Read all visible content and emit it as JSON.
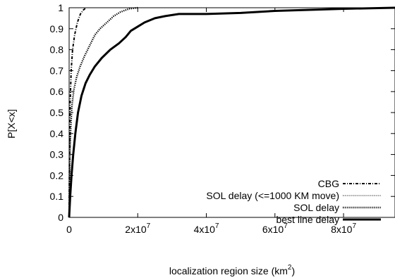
{
  "chart_data": {
    "type": "line",
    "title": "",
    "xlabel": "localization region size (km",
    "xlabel_superscript": "2",
    "xlabel_suffix": ")",
    "ylabel": "P[X<x]",
    "xlim": [
      0,
      95000000
    ],
    "ylim": [
      0,
      1
    ],
    "grid": false,
    "legend_position": "bottom-right",
    "x_ticks": [
      {
        "value": 0,
        "base": "0",
        "exp": ""
      },
      {
        "value": 20000000,
        "base": "2x10",
        "exp": "7"
      },
      {
        "value": 40000000,
        "base": "4x10",
        "exp": "7"
      },
      {
        "value": 60000000,
        "base": "6x10",
        "exp": "7"
      },
      {
        "value": 80000000,
        "base": "8x10",
        "exp": "7"
      }
    ],
    "y_ticks": [
      {
        "value": 0,
        "label": "0"
      },
      {
        "value": 0.1,
        "label": "0.1"
      },
      {
        "value": 0.2,
        "label": "0.2"
      },
      {
        "value": 0.3,
        "label": "0.3"
      },
      {
        "value": 0.4,
        "label": "0.4"
      },
      {
        "value": 0.5,
        "label": "0.5"
      },
      {
        "value": 0.6,
        "label": "0.6"
      },
      {
        "value": 0.7,
        "label": "0.7"
      },
      {
        "value": 0.8,
        "label": "0.8"
      },
      {
        "value": 0.9,
        "label": "0.9"
      },
      {
        "value": 1,
        "label": "1"
      }
    ],
    "series": [
      {
        "name": "CBG",
        "style": "dash-dot",
        "width": 2,
        "points": [
          [
            0,
            0
          ],
          [
            100000,
            0.3
          ],
          [
            300000,
            0.55
          ],
          [
            600000,
            0.7
          ],
          [
            1000000,
            0.8
          ],
          [
            1600000,
            0.87
          ],
          [
            2400000,
            0.93
          ],
          [
            3300000,
            0.97
          ],
          [
            4200000,
            0.99
          ],
          [
            5000000,
            1.0
          ]
        ]
      },
      {
        "name": "SOL delay (<=1000 KM move)",
        "style": "dotted",
        "width": 1,
        "points": [
          [
            0,
            0
          ],
          [
            150000,
            0.2
          ],
          [
            400000,
            0.4
          ],
          [
            800000,
            0.53
          ],
          [
            1400000,
            0.61
          ],
          [
            2200000,
            0.67
          ],
          [
            3200000,
            0.72
          ],
          [
            4500000,
            0.77
          ],
          [
            6000000,
            0.82
          ],
          [
            7500000,
            0.87
          ],
          [
            9000000,
            0.9
          ],
          [
            11000000,
            0.93
          ],
          [
            13000000,
            0.96
          ],
          [
            15000000,
            0.98
          ],
          [
            17500000,
            0.995
          ],
          [
            20000000,
            1.0
          ],
          [
            26000000,
            1.0
          ]
        ]
      },
      {
        "name": "SOL delay",
        "style": "dotted",
        "width": 2.4,
        "points": [
          [
            0,
            0
          ],
          [
            150000,
            0.2
          ],
          [
            400000,
            0.4
          ],
          [
            800000,
            0.53
          ],
          [
            1400000,
            0.61
          ],
          [
            2200000,
            0.67
          ],
          [
            3200000,
            0.72
          ],
          [
            4500000,
            0.77
          ],
          [
            6000000,
            0.82
          ],
          [
            7500000,
            0.87
          ],
          [
            9000000,
            0.9
          ],
          [
            11000000,
            0.93
          ],
          [
            13000000,
            0.96
          ],
          [
            15000000,
            0.98
          ],
          [
            17500000,
            0.995
          ],
          [
            20000000,
            1.0
          ]
        ]
      },
      {
        "name": "best line delay",
        "style": "solid",
        "width": 3,
        "points": [
          [
            0,
            0
          ],
          [
            300000,
            0.1
          ],
          [
            700000,
            0.2
          ],
          [
            1200000,
            0.3
          ],
          [
            1800000,
            0.4
          ],
          [
            2600000,
            0.5
          ],
          [
            3600000,
            0.58
          ],
          [
            4800000,
            0.64
          ],
          [
            6000000,
            0.68
          ],
          [
            7500000,
            0.72
          ],
          [
            9500000,
            0.76
          ],
          [
            12000000,
            0.8
          ],
          [
            14500000,
            0.83
          ],
          [
            16500000,
            0.86
          ],
          [
            18000000,
            0.89
          ],
          [
            20000000,
            0.91
          ],
          [
            22000000,
            0.93
          ],
          [
            25000000,
            0.95
          ],
          [
            28000000,
            0.96
          ],
          [
            32000000,
            0.97
          ],
          [
            40000000,
            0.97
          ],
          [
            50000000,
            0.975
          ],
          [
            60000000,
            0.985
          ],
          [
            70000000,
            0.99
          ],
          [
            80000000,
            0.995
          ],
          [
            95000000,
            1.0
          ]
        ]
      }
    ]
  }
}
